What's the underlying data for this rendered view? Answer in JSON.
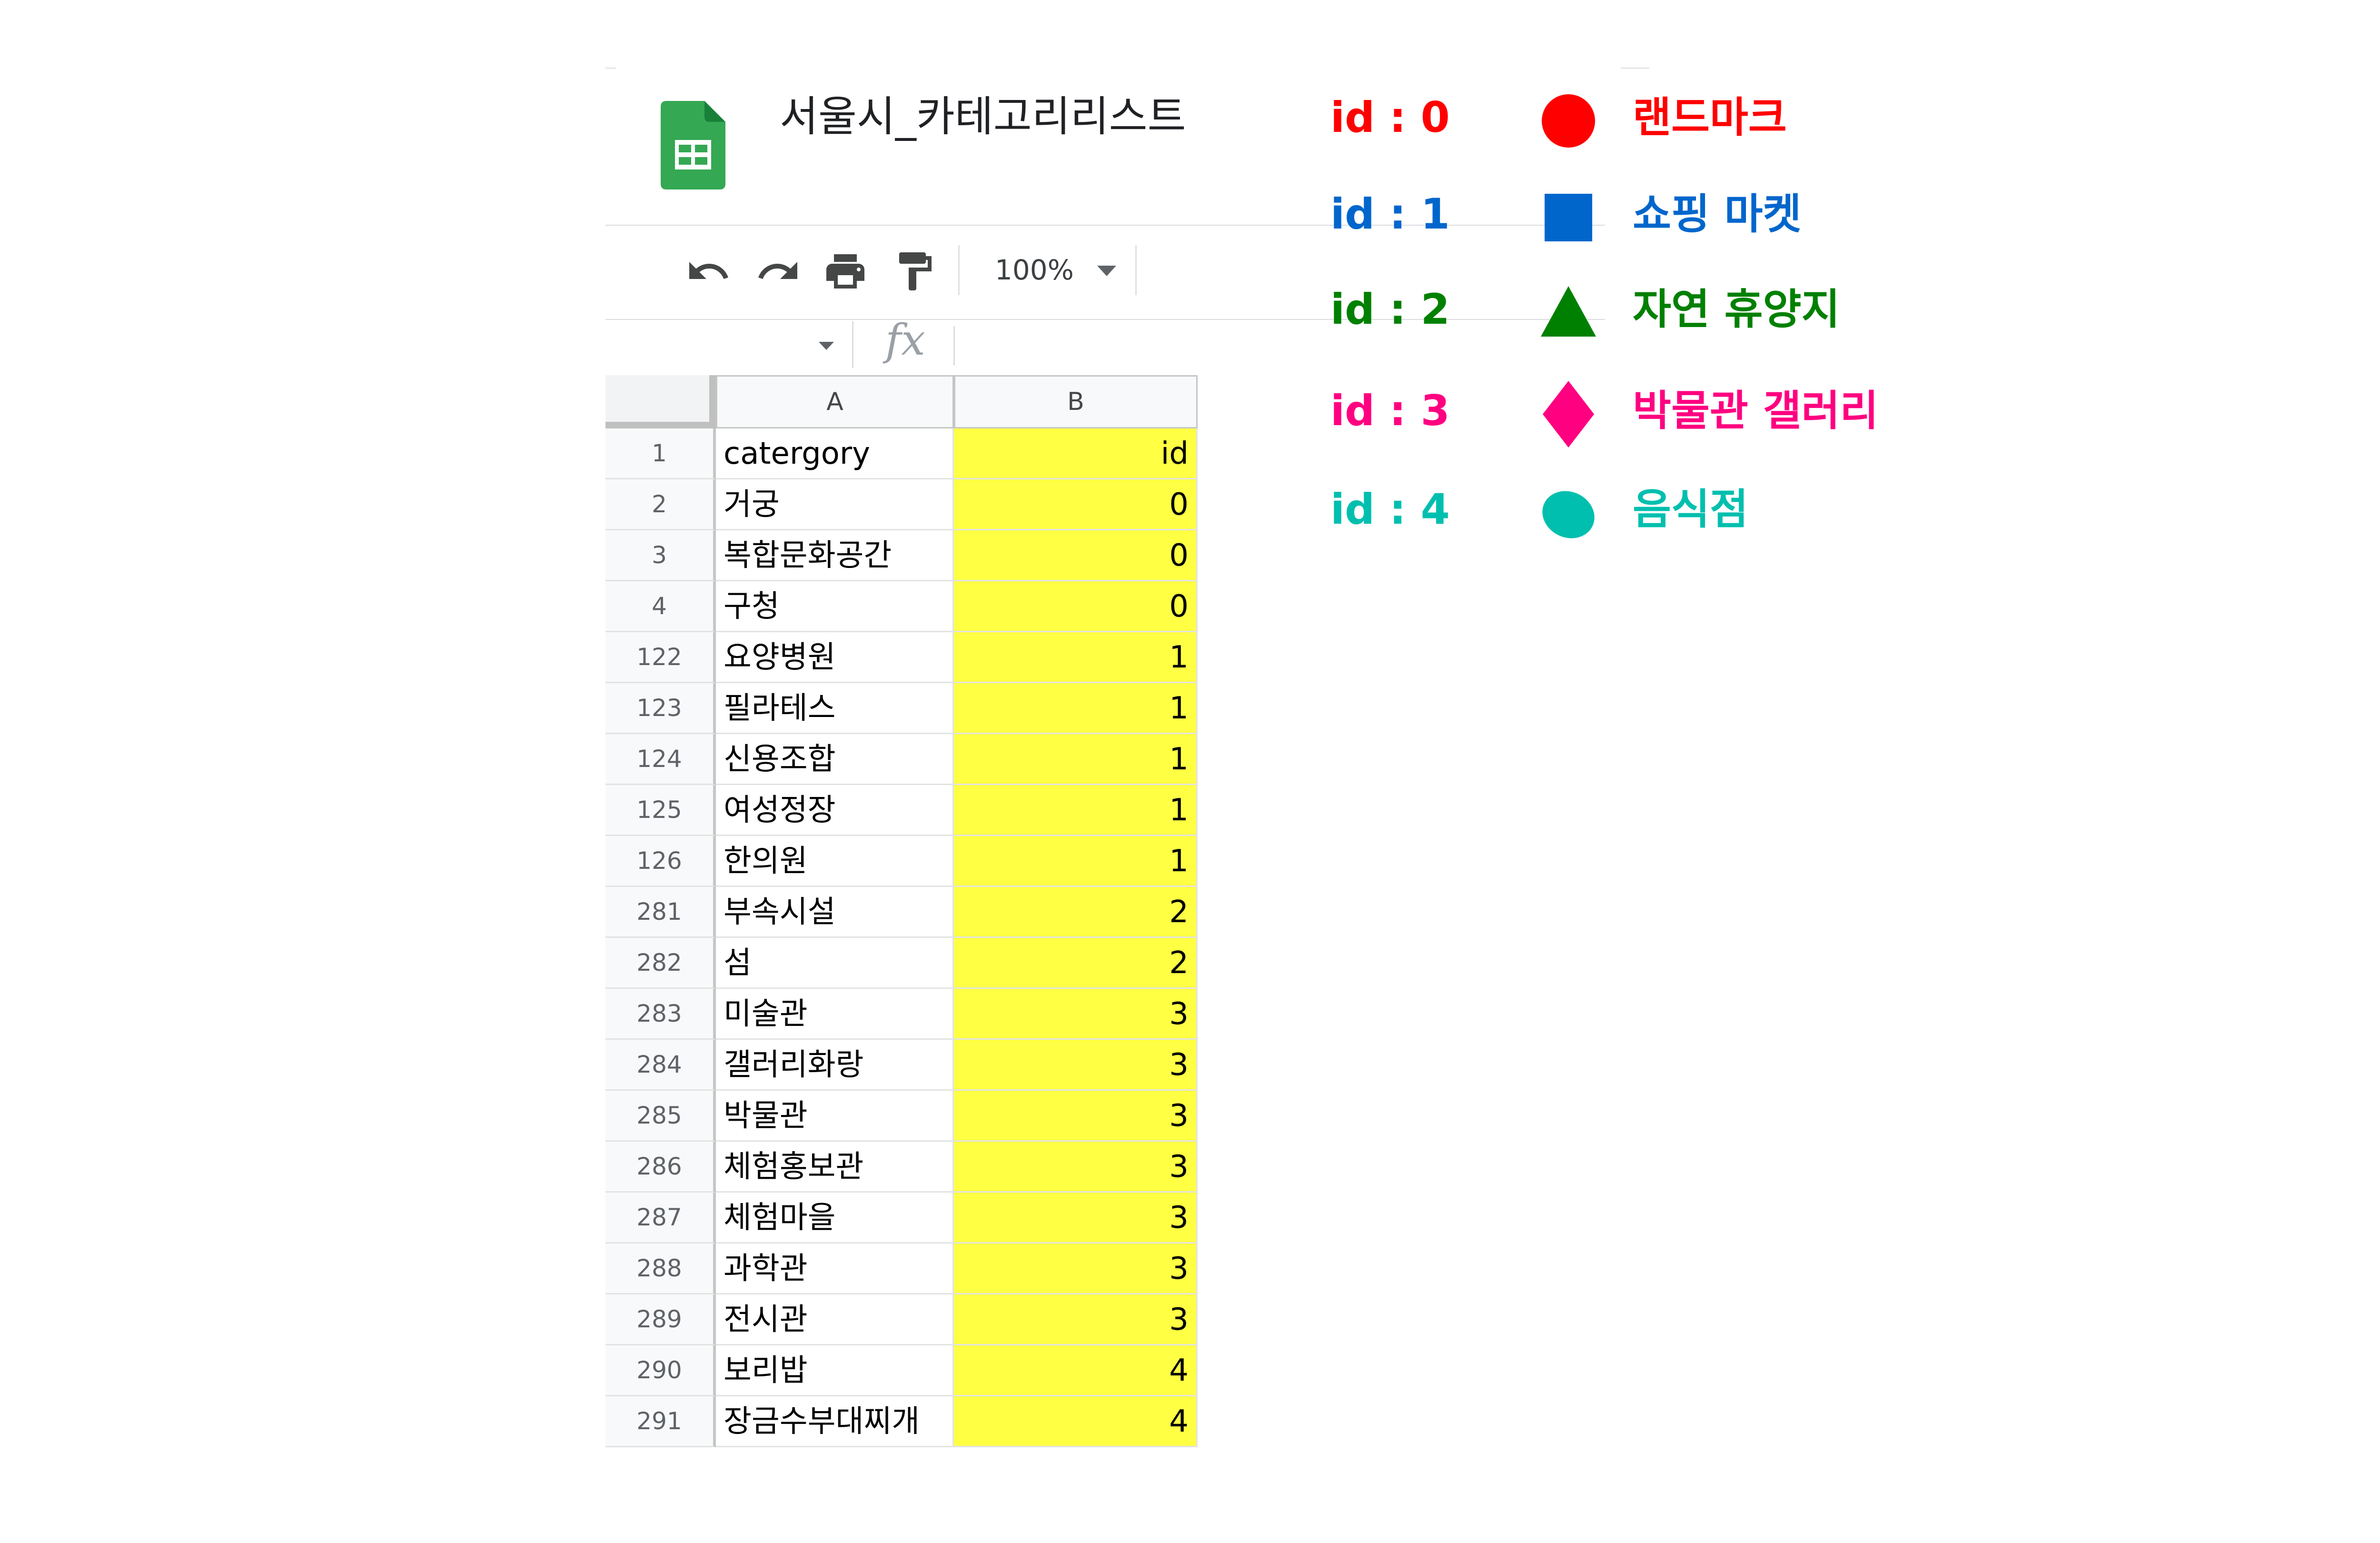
{
  "document": {
    "title": "서울시_카테고리리스트"
  },
  "toolbar": {
    "zoom": "100%"
  },
  "formula_bar": {
    "fx_label": "fx"
  },
  "sheet": {
    "columns": [
      "A",
      "B"
    ],
    "rows": [
      {
        "num": "1",
        "category": "catergory",
        "id": "id"
      },
      {
        "num": "2",
        "category": "거궁",
        "id": "0"
      },
      {
        "num": "3",
        "category": "복합문화공간",
        "id": "0"
      },
      {
        "num": "4",
        "category": "구청",
        "id": "0"
      },
      {
        "num": "122",
        "category": "요양병원",
        "id": "1"
      },
      {
        "num": "123",
        "category": "필라테스",
        "id": "1"
      },
      {
        "num": "124",
        "category": "신용조합",
        "id": "1"
      },
      {
        "num": "125",
        "category": "여성정장",
        "id": "1"
      },
      {
        "num": "126",
        "category": "한의원",
        "id": "1"
      },
      {
        "num": "281",
        "category": "부속시설",
        "id": "2"
      },
      {
        "num": "282",
        "category": "섬",
        "id": "2"
      },
      {
        "num": "283",
        "category": "미술관",
        "id": "3"
      },
      {
        "num": "284",
        "category": "갤러리화랑",
        "id": "3"
      },
      {
        "num": "285",
        "category": "박물관",
        "id": "3"
      },
      {
        "num": "286",
        "category": "체험홍보관",
        "id": "3"
      },
      {
        "num": "287",
        "category": "체험마을",
        "id": "3"
      },
      {
        "num": "288",
        "category": "과학관",
        "id": "3"
      },
      {
        "num": "289",
        "category": "전시관",
        "id": "3"
      },
      {
        "num": "290",
        "category": "보리밥",
        "id": "4"
      },
      {
        "num": "291",
        "category": "장금수부대찌개",
        "id": "4"
      }
    ],
    "highlight_color": "#ffff44"
  },
  "legend": [
    {
      "id_label": "id : 0",
      "shape": "circle-icon",
      "label": "랜드마크",
      "color": "#ff0000"
    },
    {
      "id_label": "id : 1",
      "shape": "square-icon",
      "label": "쇼핑 마켓",
      "color": "#0066cc"
    },
    {
      "id_label": "id : 2",
      "shape": "triangle-icon",
      "label": "자연 휴양지",
      "color": "#008000"
    },
    {
      "id_label": "id : 3",
      "shape": "diamond-icon",
      "label": "박물관 갤러리",
      "color": "#ff0080"
    },
    {
      "id_label": "id : 4",
      "shape": "ellipse-icon",
      "label": "음식점",
      "color": "#00bfae"
    }
  ]
}
